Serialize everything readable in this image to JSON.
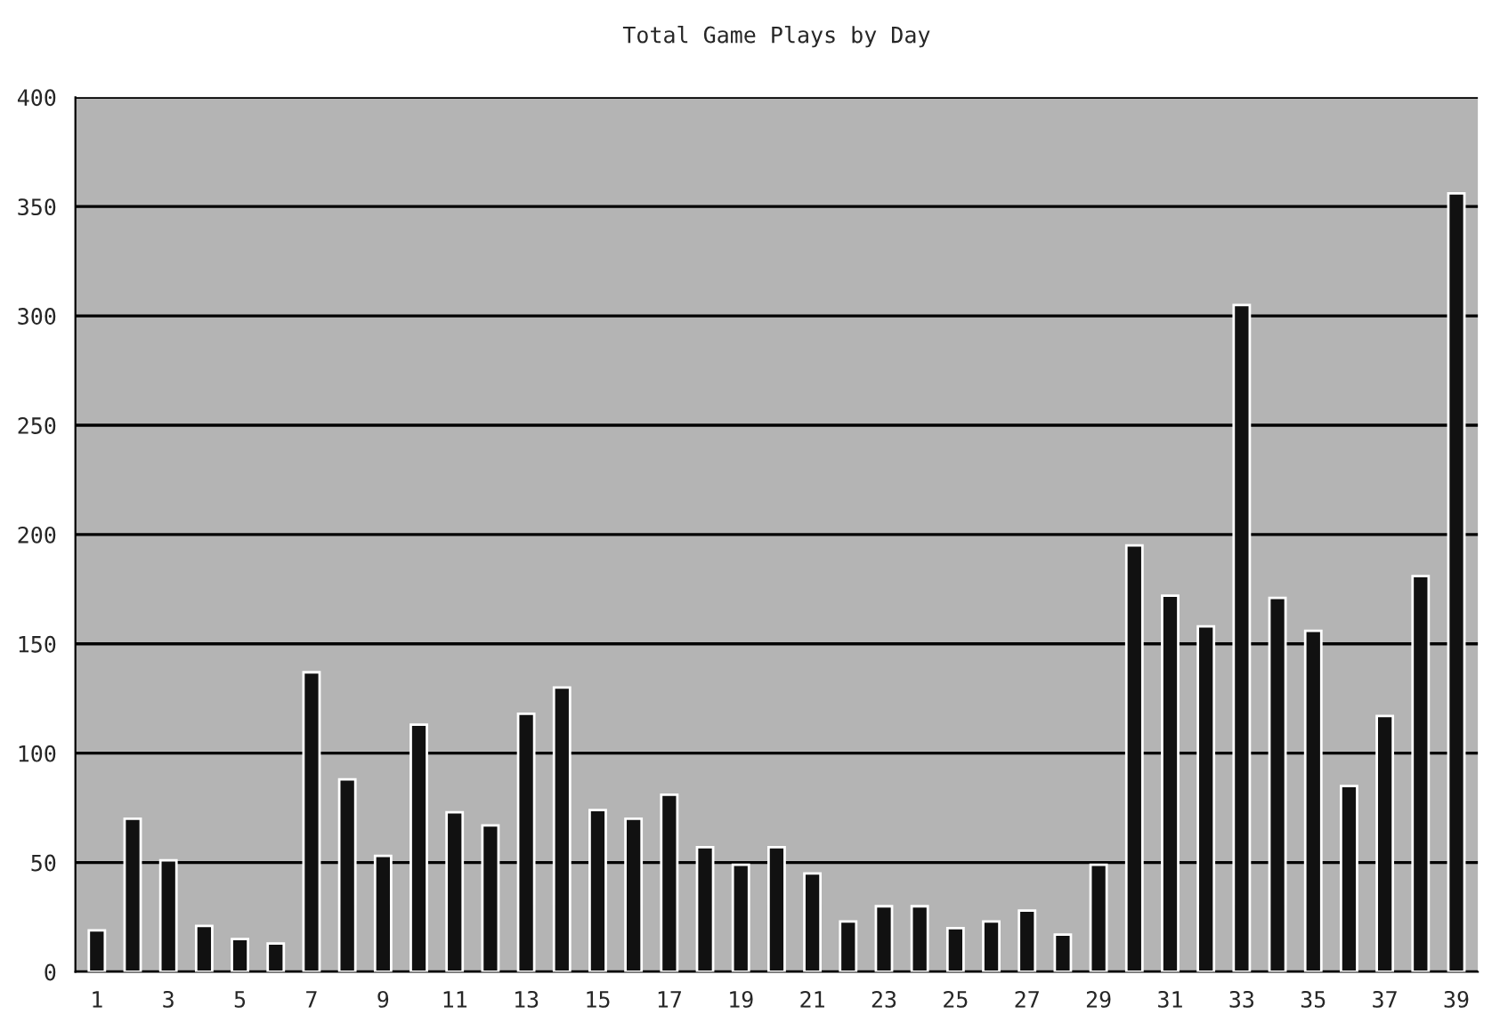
{
  "chart_data": {
    "type": "bar",
    "title": "Total Game Plays by Day",
    "categories": [
      "1",
      null,
      "3",
      null,
      "5",
      null,
      "7",
      null,
      "9",
      null,
      "11",
      null,
      "13",
      null,
      "15",
      null,
      "17",
      null,
      "19",
      null,
      "21",
      null,
      "23",
      null,
      "25",
      null,
      "27",
      null,
      "29",
      null,
      "31",
      null,
      "33",
      null,
      "35",
      null,
      "37",
      null,
      "39"
    ],
    "values": [
      19,
      70,
      51,
      21,
      15,
      13,
      137,
      88,
      53,
      113,
      73,
      67,
      118,
      130,
      74,
      70,
      81,
      57,
      49,
      57,
      45,
      23,
      30,
      30,
      20,
      23,
      28,
      17,
      49,
      195,
      172,
      158,
      305,
      171,
      156,
      85,
      117,
      181,
      356
    ],
    "color": "#111111",
    "ylim": [
      0,
      400
    ],
    "yticks": [
      0,
      50,
      100,
      150,
      200,
      250,
      300,
      350,
      400
    ],
    "grid": "y"
  }
}
